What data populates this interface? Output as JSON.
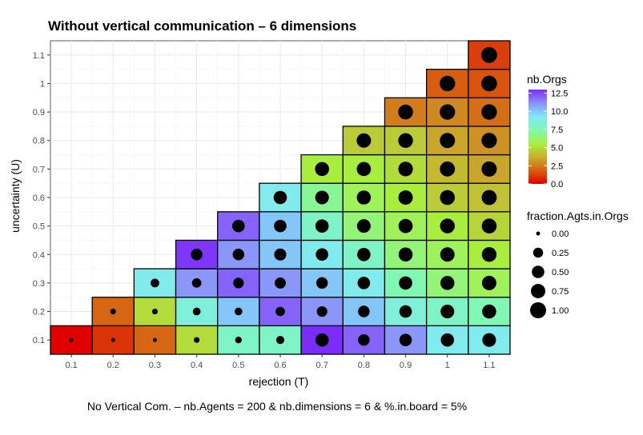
{
  "chart_data": {
    "type": "heatmap",
    "title": "Without vertical communication – 6 dimensions",
    "xlabel": "rejection (T)",
    "ylabel": "uncertainty (U)",
    "caption": "No Vertical Com. – nb.Agents = 200 & nb.dimensions = 6 & %.in.board = 5%",
    "x_ticks": [
      "0.1",
      "0.2",
      "0.3",
      "0.4",
      "0.5",
      "0.6",
      "0.7",
      "0.8",
      "0.9",
      "1",
      "1.1"
    ],
    "y_ticks": [
      "0.1",
      "0.2",
      "0.3",
      "0.4",
      "0.5",
      "0.6",
      "0.7",
      "0.8",
      "0.9",
      "1",
      "1.1"
    ],
    "xlim": [
      0.05,
      1.15
    ],
    "ylim": [
      0.05,
      1.15
    ],
    "grid": true,
    "color_legend": {
      "title": "nb.Orgs",
      "ticks": [
        "12.5",
        "10.0",
        "7.5",
        "5.0",
        "2.5",
        "0.0"
      ],
      "tick_values": [
        12.5,
        10.0,
        7.5,
        5.0,
        2.5,
        0.0
      ],
      "range": [
        0,
        13
      ],
      "colors": [
        "#e00000",
        "#d86010",
        "#c8b030",
        "#a8f040",
        "#80f8b0",
        "#80e8f8",
        "#8c90f8",
        "#7c2cf8"
      ]
    },
    "size_legend": {
      "title": "fraction.Agts.in.Orgs",
      "labels": [
        "0.00",
        "0.25",
        "0.50",
        "0.75",
        "1.00"
      ],
      "values": [
        0.0,
        0.25,
        0.5,
        0.75,
        1.0
      ]
    },
    "cells": [
      {
        "x": 0.1,
        "y": 0.1,
        "orgs": 0,
        "frac": 0.0
      },
      {
        "x": 0.2,
        "y": 0.1,
        "orgs": 1,
        "frac": 0.0
      },
      {
        "x": 0.2,
        "y": 0.2,
        "orgs": 2,
        "frac": 0.02
      },
      {
        "x": 0.3,
        "y": 0.1,
        "orgs": 2,
        "frac": 0.0
      },
      {
        "x": 0.3,
        "y": 0.2,
        "orgs": 5,
        "frac": 0.02
      },
      {
        "x": 0.3,
        "y": 0.3,
        "orgs": 9,
        "frac": 0.15
      },
      {
        "x": 0.4,
        "y": 0.1,
        "orgs": 5,
        "frac": 0.02
      },
      {
        "x": 0.4,
        "y": 0.2,
        "orgs": 8.5,
        "frac": 0.1
      },
      {
        "x": 0.4,
        "y": 0.3,
        "orgs": 11,
        "frac": 0.2
      },
      {
        "x": 0.4,
        "y": 0.4,
        "orgs": 12.8,
        "frac": 0.4
      },
      {
        "x": 0.5,
        "y": 0.1,
        "orgs": 8,
        "frac": 0.05
      },
      {
        "x": 0.5,
        "y": 0.2,
        "orgs": 10,
        "frac": 0.1
      },
      {
        "x": 0.5,
        "y": 0.3,
        "orgs": 12,
        "frac": 0.3
      },
      {
        "x": 0.5,
        "y": 0.4,
        "orgs": 11,
        "frac": 0.4
      },
      {
        "x": 0.5,
        "y": 0.5,
        "orgs": 12,
        "frac": 0.5
      },
      {
        "x": 0.6,
        "y": 0.1,
        "orgs": 8,
        "frac": 0.12
      },
      {
        "x": 0.6,
        "y": 0.2,
        "orgs": 12,
        "frac": 0.2
      },
      {
        "x": 0.6,
        "y": 0.3,
        "orgs": 11,
        "frac": 0.35
      },
      {
        "x": 0.6,
        "y": 0.4,
        "orgs": 10,
        "frac": 0.45
      },
      {
        "x": 0.6,
        "y": 0.5,
        "orgs": 10,
        "frac": 0.5
      },
      {
        "x": 0.6,
        "y": 0.6,
        "orgs": 9,
        "frac": 0.6
      },
      {
        "x": 0.7,
        "y": 0.1,
        "orgs": 13,
        "frac": 0.6
      },
      {
        "x": 0.7,
        "y": 0.2,
        "orgs": 11,
        "frac": 0.3
      },
      {
        "x": 0.7,
        "y": 0.3,
        "orgs": 10,
        "frac": 0.4
      },
      {
        "x": 0.7,
        "y": 0.4,
        "orgs": 9,
        "frac": 0.5
      },
      {
        "x": 0.7,
        "y": 0.5,
        "orgs": 8,
        "frac": 0.6
      },
      {
        "x": 0.7,
        "y": 0.6,
        "orgs": 7,
        "frac": 0.65
      },
      {
        "x": 0.7,
        "y": 0.7,
        "orgs": 5.5,
        "frac": 0.7
      },
      {
        "x": 0.8,
        "y": 0.1,
        "orgs": 12,
        "frac": 0.4
      },
      {
        "x": 0.8,
        "y": 0.2,
        "orgs": 10,
        "frac": 0.4
      },
      {
        "x": 0.8,
        "y": 0.3,
        "orgs": 9,
        "frac": 0.5
      },
      {
        "x": 0.8,
        "y": 0.4,
        "orgs": 8,
        "frac": 0.6
      },
      {
        "x": 0.8,
        "y": 0.5,
        "orgs": 6.5,
        "frac": 0.65
      },
      {
        "x": 0.8,
        "y": 0.6,
        "orgs": 6,
        "frac": 0.7
      },
      {
        "x": 0.8,
        "y": 0.7,
        "orgs": 5.5,
        "frac": 0.72
      },
      {
        "x": 0.8,
        "y": 0.8,
        "orgs": 4.5,
        "frac": 0.75
      },
      {
        "x": 0.9,
        "y": 0.1,
        "orgs": 11,
        "frac": 0.5
      },
      {
        "x": 0.9,
        "y": 0.2,
        "orgs": 8.5,
        "frac": 0.5
      },
      {
        "x": 0.9,
        "y": 0.3,
        "orgs": 7.5,
        "frac": 0.6
      },
      {
        "x": 0.9,
        "y": 0.4,
        "orgs": 6.5,
        "frac": 0.7
      },
      {
        "x": 0.9,
        "y": 0.5,
        "orgs": 6,
        "frac": 0.72
      },
      {
        "x": 0.9,
        "y": 0.6,
        "orgs": 5.5,
        "frac": 0.75
      },
      {
        "x": 0.9,
        "y": 0.7,
        "orgs": 5,
        "frac": 0.78
      },
      {
        "x": 0.9,
        "y": 0.8,
        "orgs": 4.5,
        "frac": 0.8
      },
      {
        "x": 0.9,
        "y": 0.9,
        "orgs": 2.5,
        "frac": 0.82
      },
      {
        "x": 1.0,
        "y": 0.1,
        "orgs": 9,
        "frac": 0.6
      },
      {
        "x": 1.0,
        "y": 0.2,
        "orgs": 8,
        "frac": 0.65
      },
      {
        "x": 1.0,
        "y": 0.3,
        "orgs": 6.5,
        "frac": 0.7
      },
      {
        "x": 1.0,
        "y": 0.4,
        "orgs": 6,
        "frac": 0.75
      },
      {
        "x": 1.0,
        "y": 0.5,
        "orgs": 5.5,
        "frac": 0.8
      },
      {
        "x": 1.0,
        "y": 0.6,
        "orgs": 4.5,
        "frac": 0.82
      },
      {
        "x": 1.0,
        "y": 0.7,
        "orgs": 4,
        "frac": 0.85
      },
      {
        "x": 1.0,
        "y": 0.8,
        "orgs": 3.5,
        "frac": 0.87
      },
      {
        "x": 1.0,
        "y": 0.9,
        "orgs": 2.8,
        "frac": 0.9
      },
      {
        "x": 1.0,
        "y": 1.0,
        "orgs": 1.8,
        "frac": 0.92
      },
      {
        "x": 1.1,
        "y": 0.1,
        "orgs": 9,
        "frac": 0.65
      },
      {
        "x": 1.1,
        "y": 0.2,
        "orgs": 7.5,
        "frac": 0.7
      },
      {
        "x": 1.1,
        "y": 0.3,
        "orgs": 6,
        "frac": 0.75
      },
      {
        "x": 1.1,
        "y": 0.4,
        "orgs": 5.5,
        "frac": 0.8
      },
      {
        "x": 1.1,
        "y": 0.5,
        "orgs": 4.8,
        "frac": 0.82
      },
      {
        "x": 1.1,
        "y": 0.6,
        "orgs": 4.2,
        "frac": 0.85
      },
      {
        "x": 1.1,
        "y": 0.7,
        "orgs": 3.5,
        "frac": 0.88
      },
      {
        "x": 1.1,
        "y": 0.8,
        "orgs": 3,
        "frac": 0.9
      },
      {
        "x": 1.1,
        "y": 0.9,
        "orgs": 2.2,
        "frac": 0.92
      },
      {
        "x": 1.1,
        "y": 1.0,
        "orgs": 1.6,
        "frac": 0.95
      },
      {
        "x": 1.1,
        "y": 1.1,
        "orgs": 1.2,
        "frac": 0.97
      }
    ]
  }
}
